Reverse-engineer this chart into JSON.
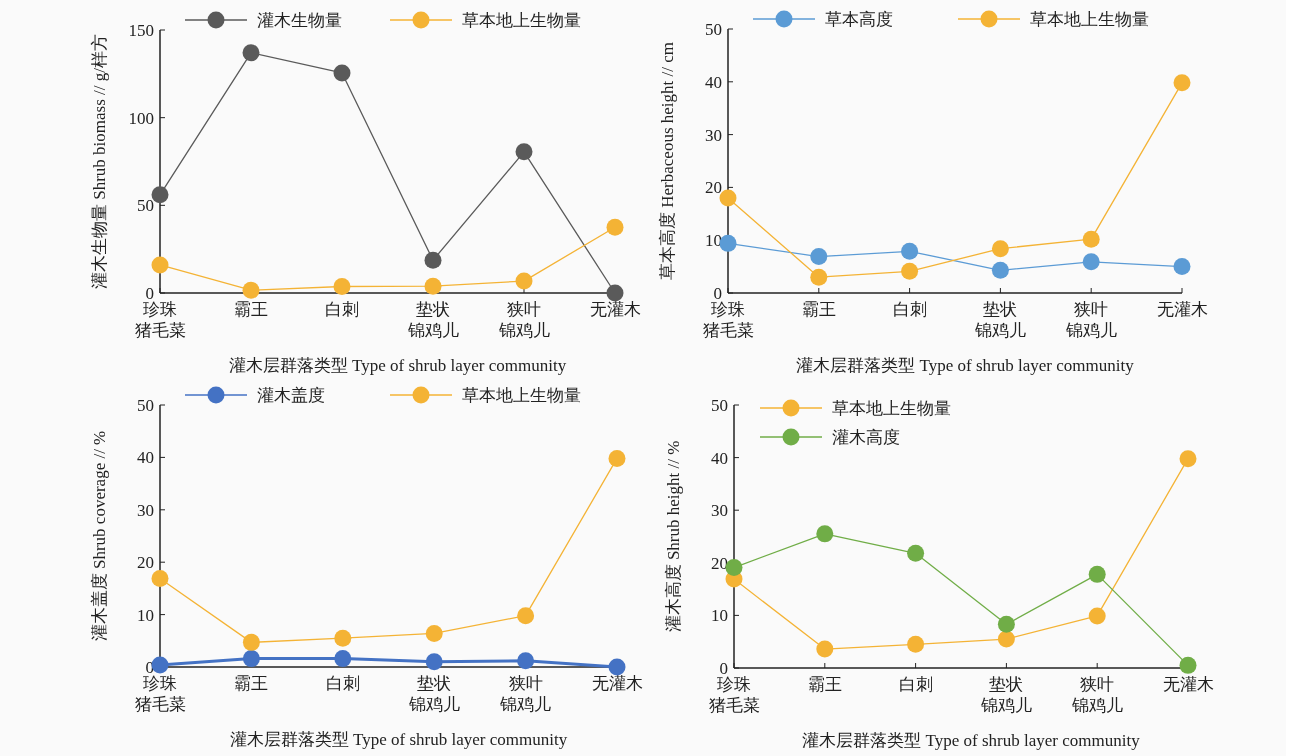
{
  "chart_data": [
    {
      "type": "line",
      "xlabel": "灌木层群落类型 Type of shrub layer community",
      "ylabel": "灌木生物量 Shrub biomass // g/样方",
      "categories": [
        "珍珠猪毛菜",
        "霸王",
        "白刺",
        "垫状锦鸡儿",
        "狭叶锦鸡儿",
        "无灌木"
      ],
      "ylim": [
        0,
        150
      ],
      "yticks": [
        0,
        50,
        100,
        150
      ],
      "legend": "top",
      "marker": "circle",
      "line_style": "solid",
      "grid": false,
      "series": [
        {
          "name": "灌木生物量",
          "color": "#5a5a5a",
          "values": [
            56,
            137,
            125.5,
            18.7,
            80.5,
            0
          ]
        },
        {
          "name": "草本地上生物量",
          "color": "#f4b335",
          "values": [
            16,
            1.6,
            3.7,
            3.9,
            6.8,
            37.5
          ]
        }
      ]
    },
    {
      "type": "line",
      "xlabel": "灌木层群落类型 Type of shrub layer community",
      "ylabel": "草本高度 Herbaceous height // cm",
      "categories": [
        "珍珠猪毛菜",
        "霸王",
        "白刺",
        "垫状锦鸡儿",
        "狭叶锦鸡儿",
        "无灌木"
      ],
      "ylim": [
        0,
        50
      ],
      "yticks": [
        0,
        10,
        20,
        30,
        40,
        50
      ],
      "legend": "top",
      "marker": "circle",
      "line_style": "solid",
      "grid": false,
      "series": [
        {
          "name": "草本高度",
          "color": "#5b9bd5",
          "values": [
            9.4,
            6.9,
            7.9,
            4.3,
            5.9,
            5.0
          ]
        },
        {
          "name": "草本地上生物量",
          "color": "#f4b335",
          "values": [
            18.0,
            3.0,
            4.1,
            8.4,
            10.2,
            39.8
          ]
        }
      ]
    },
    {
      "type": "line",
      "xlabel": "灌木层群落类型 Type of shrub layer community",
      "ylabel": "灌木盖度 Shrub coverage // %",
      "categories": [
        "珍珠猪毛菜",
        "霸王",
        "白刺",
        "垫状锦鸡儿",
        "狭叶锦鸡儿",
        "无灌木"
      ],
      "ylim": [
        0,
        50
      ],
      "yticks": [
        0,
        10,
        20,
        30,
        40,
        50
      ],
      "legend": "top",
      "marker": "circle",
      "line_style": "solid",
      "grid": false,
      "series": [
        {
          "name": "灌木盖度",
          "color": "#4472c4",
          "values": [
            0.4,
            1.6,
            1.6,
            1.0,
            1.2,
            0
          ]
        },
        {
          "name": "草本地上生物量",
          "color": "#f4b335",
          "values": [
            16.9,
            4.7,
            5.5,
            6.4,
            9.8,
            39.8
          ]
        }
      ]
    },
    {
      "type": "line",
      "xlabel": "灌木层群落类型 Type of shrub layer community",
      "ylabel": "灌木高度 Shrub height // %",
      "categories": [
        "珍珠猪毛菜",
        "霸王",
        "白刺",
        "垫状锦鸡儿",
        "狭叶锦鸡儿",
        "无灌木"
      ],
      "ylim": [
        0,
        50
      ],
      "yticks": [
        0,
        10,
        20,
        30,
        40,
        50
      ],
      "legend": "top left",
      "marker": "circle",
      "line_style": "solid",
      "grid": false,
      "series": [
        {
          "name": "草本地上生物量",
          "color": "#f4b335",
          "values": [
            16.9,
            3.6,
            4.5,
            5.5,
            9.9,
            39.8
          ]
        },
        {
          "name": "灌木高度",
          "color": "#70ad47",
          "values": [
            19.1,
            25.5,
            21.8,
            8.3,
            17.8,
            0.5
          ]
        }
      ]
    }
  ]
}
